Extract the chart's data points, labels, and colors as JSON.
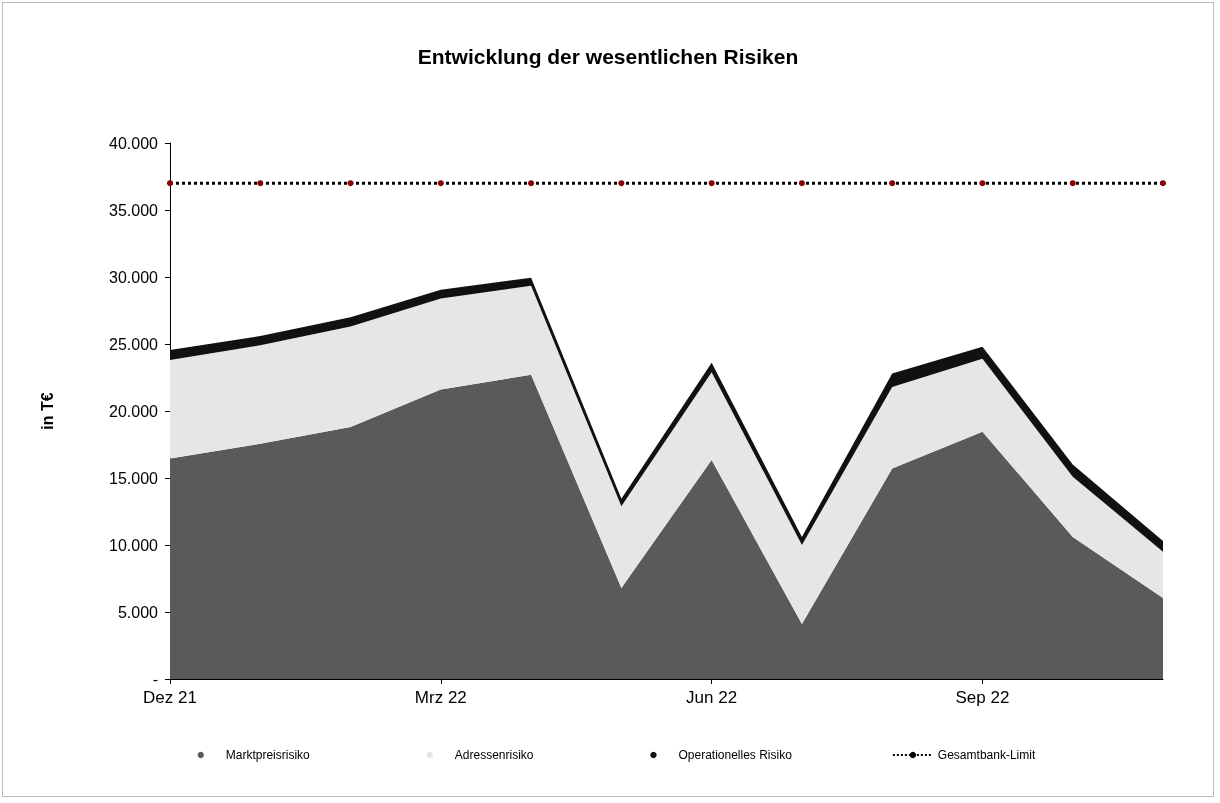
{
  "chart_data": {
    "type": "area",
    "title": "Entwicklung der wesentlichen Risiken",
    "ylabel": "in T€",
    "categories": [
      "Dez 21",
      null,
      null,
      "Mrz 22",
      null,
      null,
      "Jun 22",
      null,
      null,
      "Sep 22",
      null,
      null
    ],
    "stacked": true,
    "series": [
      {
        "name": "Marktpreisrisiko",
        "color": "#5a5a5a",
        "values": [
          16450,
          17550,
          18800,
          21600,
          22700,
          6800,
          16350,
          4100,
          15700,
          18450,
          10600,
          6050
        ]
      },
      {
        "name": "Adressenrisiko",
        "color": "#e6e6e6",
        "values": [
          7350,
          7350,
          7500,
          6800,
          6650,
          6100,
          6550,
          5900,
          6100,
          5450,
          4500,
          3450
        ]
      },
      {
        "name": "Operationelles Risiko",
        "color": "#111111",
        "values": [
          750,
          700,
          700,
          650,
          600,
          550,
          700,
          600,
          1000,
          900,
          900,
          800
        ]
      },
      {
        "name": "Gesamtbank-Limit",
        "type": "line",
        "color": "#000000",
        "marker": "circle",
        "line_style": "dotted",
        "colors": [
          "#8b0000",
          "#8b0000",
          "#8b0000",
          "#8b0000",
          "#8b0000",
          "#8b0000",
          "#8b0000",
          "#8b0000",
          "#8b0000",
          "#8b0000",
          "#8b0000",
          "#8b0000"
        ],
        "values": [
          37000,
          37000,
          37000,
          37000,
          37000,
          37000,
          37000,
          37000,
          37000,
          37000,
          37000,
          37000
        ]
      }
    ],
    "ylim": [
      0,
      40000
    ],
    "yticks": [
      {
        "value": 0,
        "label": "-"
      },
      {
        "value": 5000,
        "label": "5.000"
      },
      {
        "value": 10000,
        "label": "10.000"
      },
      {
        "value": 15000,
        "label": "15.000"
      },
      {
        "value": 20000,
        "label": "20.000"
      },
      {
        "value": 25000,
        "label": "25.000"
      },
      {
        "value": 30000,
        "label": "30.000"
      },
      {
        "value": 35000,
        "label": "35.000"
      },
      {
        "value": 40000,
        "label": "40.000"
      }
    ],
    "grid": false,
    "legend": "bottom"
  }
}
